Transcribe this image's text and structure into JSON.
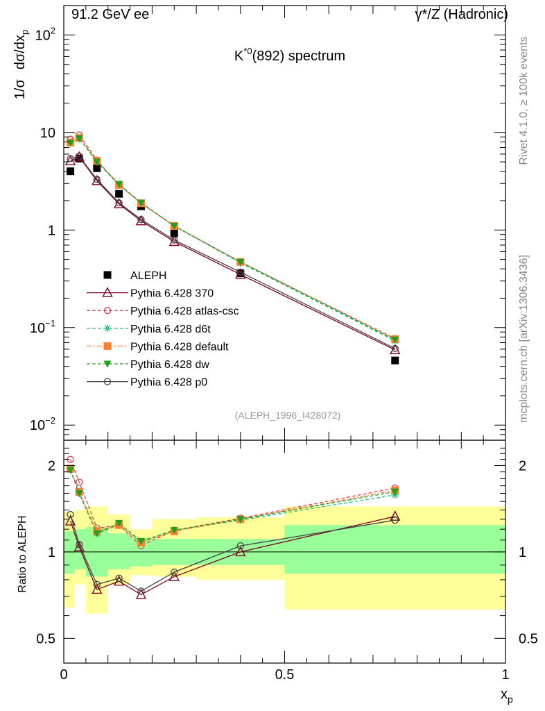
{
  "header": {
    "left": "91.2 GeV ee",
    "right": "γ*/Z (Hadronic)"
  },
  "side_labels": {
    "top": "Rivet 4.1.0, ≥ 100k events",
    "bottom": "mcplots.cern.ch [arXiv:1306.3436]"
  },
  "chart_data": [
    {
      "type": "line",
      "panel": "main",
      "title": "K*0(892) spectrum",
      "title_base": "K",
      "title_sup": "*0",
      "title_rest": "(892) spectrum",
      "ylabel": "1/σ  dσ/dx_p",
      "ylabel_parts": {
        "a": "1/σ",
        "b": "dσ/dx",
        "sub": "p"
      },
      "yscale": "log",
      "ylim": [
        0.007,
        200
      ],
      "yticks": [
        {
          "value": 0.01,
          "base": "10",
          "exp": "−2"
        },
        {
          "value": 0.1,
          "base": "10",
          "exp": "−1"
        },
        {
          "value": 1,
          "base": "1",
          "exp": ""
        },
        {
          "value": 10,
          "base": "10",
          "exp": ""
        },
        {
          "value": 100,
          "base": "10",
          "exp": "2"
        }
      ],
      "xlim": [
        0,
        1
      ],
      "x": [
        0.015,
        0.035,
        0.075,
        0.125,
        0.175,
        0.25,
        0.4,
        0.75
      ],
      "series": [
        {
          "name": "ALEPH",
          "color": "#000000",
          "marker": "square",
          "dash": "none",
          "values": [
            4.0,
            5.4,
            4.3,
            2.35,
            1.75,
            0.93,
            0.36,
            0.046
          ]
        },
        {
          "name": "Pythia 6.428 370",
          "color": "#800020",
          "marker": "triangle",
          "dash": "solid",
          "values": [
            5.1,
            5.6,
            3.2,
            1.85,
            1.24,
            0.76,
            0.35,
            0.059
          ]
        },
        {
          "name": "Pythia 6.428 atlas-csc",
          "color": "#e0405a",
          "marker": "circle",
          "dash": "dashed",
          "values": [
            8.5,
            9.4,
            5.2,
            2.9,
            1.88,
            1.1,
            0.47,
            0.077
          ]
        },
        {
          "name": "Pythia 6.428 d6t",
          "color": "#20c080",
          "marker": "star",
          "dash": "dashed",
          "values": [
            7.8,
            8.7,
            5.0,
            2.9,
            1.9,
            1.1,
            0.46,
            0.073
          ]
        },
        {
          "name": "Pythia 6.428 default",
          "color": "#ff8030",
          "marker": "square",
          "dash": "dashdot",
          "values": [
            7.9,
            8.8,
            5.1,
            2.9,
            1.88,
            1.1,
            0.47,
            0.076
          ]
        },
        {
          "name": "Pythia 6.428 dw",
          "color": "#20a020",
          "marker": "triangle-down",
          "dash": "dashed",
          "values": [
            7.8,
            8.7,
            5.0,
            2.95,
            1.9,
            1.1,
            0.47,
            0.075
          ]
        },
        {
          "name": "Pythia 6.428 p0",
          "color": "#404040",
          "marker": "circle",
          "dash": "solid",
          "values": [
            5.4,
            5.7,
            3.3,
            1.9,
            1.28,
            0.79,
            0.37,
            0.061
          ]
        }
      ],
      "legend": "middle-left",
      "annotation": "(ALEPH_1996_I428072)"
    },
    {
      "type": "line",
      "panel": "ratio",
      "ylabel": "Ratio to ALEPH",
      "yscale": "log",
      "ylim": [
        0.41,
        2.45
      ],
      "yticks": [
        0.5,
        1,
        2
      ],
      "ytick_labels": [
        "0.5",
        "1",
        "2"
      ],
      "xlabel": "x_p",
      "xlabel_parts": {
        "base": "x",
        "sub": "p"
      },
      "xlim": [
        0,
        1
      ],
      "xticks": [
        0,
        0.5,
        1
      ],
      "xtick_labels": [
        "0",
        "0.5",
        "1"
      ],
      "x": [
        0.015,
        0.035,
        0.075,
        0.125,
        0.175,
        0.25,
        0.4,
        0.75
      ],
      "bands": [
        {
          "xlo": 0.0,
          "xhi": 0.025,
          "y1lo": 0.84,
          "y1hi": 1.18,
          "y2lo": 0.64,
          "y2hi": 1.38
        },
        {
          "xlo": 0.025,
          "xhi": 0.05,
          "y1lo": 0.87,
          "y1hi": 1.2,
          "y2lo": 0.77,
          "y2hi": 1.4
        },
        {
          "xlo": 0.05,
          "xhi": 0.1,
          "y1lo": 0.82,
          "y1hi": 1.22,
          "y2lo": 0.61,
          "y2hi": 1.44
        },
        {
          "xlo": 0.1,
          "xhi": 0.15,
          "y1lo": 0.87,
          "y1hi": 1.16,
          "y2lo": 0.77,
          "y2hi": 1.35
        },
        {
          "xlo": 0.15,
          "xhi": 0.2,
          "y1lo": 0.89,
          "y1hi": 1.12,
          "y2lo": 0.83,
          "y2hi": 1.2
        },
        {
          "xlo": 0.2,
          "xhi": 0.3,
          "y1lo": 0.9,
          "y1hi": 1.11,
          "y2lo": 0.82,
          "y2hi": 1.3
        },
        {
          "xlo": 0.3,
          "xhi": 0.5,
          "y1lo": 0.9,
          "y1hi": 1.11,
          "y2lo": 0.8,
          "y2hi": 1.32
        },
        {
          "xlo": 0.5,
          "xhi": 1.0,
          "y1lo": 0.84,
          "y1hi": 1.24,
          "y2lo": 0.63,
          "y2hi": 1.44
        }
      ],
      "band_colors": {
        "inner": "#99ff99",
        "outer": "#ffff99"
      },
      "series": [
        {
          "name": "Pythia 6.428 370",
          "color": "#800020",
          "marker": "triangle",
          "dash": "solid",
          "values": [
            1.28,
            1.04,
            0.74,
            0.79,
            0.71,
            0.82,
            1.0,
            1.33
          ]
        },
        {
          "name": "Pythia 6.428 atlas-csc",
          "color": "#e0405a",
          "marker": "circle",
          "dash": "dashed",
          "values": [
            2.1,
            1.75,
            1.21,
            1.24,
            1.05,
            1.19,
            1.31,
            1.67
          ]
        },
        {
          "name": "Pythia 6.428 d6t",
          "color": "#20c080",
          "marker": "star",
          "dash": "dashed",
          "values": [
            1.93,
            1.6,
            1.16,
            1.24,
            1.08,
            1.19,
            1.29,
            1.58
          ]
        },
        {
          "name": "Pythia 6.428 default",
          "color": "#ff8030",
          "marker": "square",
          "dash": "dashdot",
          "values": [
            1.95,
            1.62,
            1.18,
            1.24,
            1.08,
            1.18,
            1.3,
            1.64
          ]
        },
        {
          "name": "Pythia 6.428 dw",
          "color": "#20a020",
          "marker": "triangle-down",
          "dash": "dashed",
          "values": [
            1.93,
            1.6,
            1.16,
            1.26,
            1.09,
            1.19,
            1.3,
            1.62
          ]
        },
        {
          "name": "Pythia 6.428 p0",
          "color": "#404040",
          "marker": "circle",
          "dash": "solid",
          "values": [
            1.35,
            1.06,
            0.77,
            0.81,
            0.73,
            0.85,
            1.05,
            1.29
          ]
        }
      ]
    }
  ]
}
